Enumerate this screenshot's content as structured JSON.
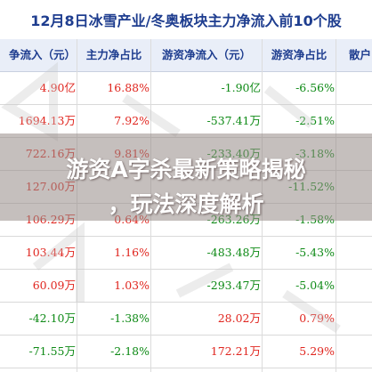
{
  "title": "12月8日冰雪产业/冬奥板块主力净流入前10个股",
  "columns": [
    "争流入（元）",
    "主力净占比",
    "游资净流入（元）",
    "游资净占比",
    "散户"
  ],
  "rows": [
    {
      "net_inflow": "4.90亿",
      "main_ratio": "16.88%",
      "hot_inflow": "-1.90亿",
      "hot_ratio": "-6.56%"
    },
    {
      "net_inflow": "1694.13万",
      "main_ratio": "7.92%",
      "hot_inflow": "-537.41万",
      "hot_ratio": "-2.51%"
    },
    {
      "net_inflow": "722.16万",
      "main_ratio": "9.81%",
      "hot_inflow": "-233.40万",
      "hot_ratio": "-3.18%"
    },
    {
      "net_inflow": "127.00万",
      "main_ratio": "",
      "hot_inflow": "",
      "hot_ratio": "-11.52%"
    },
    {
      "net_inflow": "106.29万",
      "main_ratio": "0.64%",
      "hot_inflow": "-263.26万",
      "hot_ratio": "-1.58%"
    },
    {
      "net_inflow": "103.44万",
      "main_ratio": "1.16%",
      "hot_inflow": "-483.48万",
      "hot_ratio": "-5.43%"
    },
    {
      "net_inflow": "60.09万",
      "main_ratio": "1.03%",
      "hot_inflow": "-293.47万",
      "hot_ratio": "-5.04%"
    },
    {
      "net_inflow": "-42.10万",
      "main_ratio": "-1.38%",
      "hot_inflow": "28.02万",
      "hot_ratio": "0.79%"
    },
    {
      "net_inflow": "-71.55万",
      "main_ratio": "-2.18%",
      "hot_inflow": "172.21万",
      "hot_ratio": "5.29%"
    }
  ],
  "banner": {
    "line1": "游资A字杀最新策略揭秘",
    "line2": "，玩法深度解析"
  },
  "colors": {
    "positive": "#e0261f",
    "negative": "#0e8a16",
    "header_text": "#1e3d8f",
    "header_bg": "#e9eef8"
  }
}
